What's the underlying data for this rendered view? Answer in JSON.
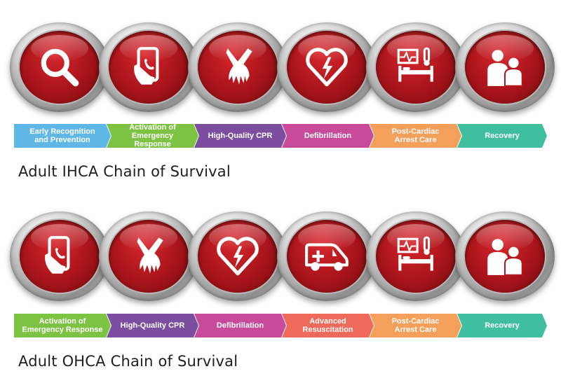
{
  "ihca": {
    "caption": "Adult IHCA Chain of Survival",
    "links": [
      {
        "icon": "magnifier-icon"
      },
      {
        "icon": "phone-in-hand-icon"
      },
      {
        "icon": "cpr-hands-icon"
      },
      {
        "icon": "heart-defibrillation-icon"
      },
      {
        "icon": "hospital-bed-monitor-icon"
      },
      {
        "icon": "family-recovery-icon"
      }
    ],
    "steps": [
      {
        "label": "Early Recognition\nand Prevention",
        "color": "#5fb7e5"
      },
      {
        "label": "Activation of\nEmergency Response",
        "color": "#7dc242"
      },
      {
        "label": "High-Quality CPR",
        "color": "#7b4ea0"
      },
      {
        "label": "Defibrillation",
        "color": "#c94a9b"
      },
      {
        "label": "Post-Cardiac\nArrest Care",
        "color": "#f5a05a"
      },
      {
        "label": "Recovery",
        "color": "#3fbfa0"
      }
    ]
  },
  "ohca": {
    "caption": "Adult OHCA Chain of Survival",
    "links": [
      {
        "icon": "phone-in-hand-icon"
      },
      {
        "icon": "cpr-hands-icon"
      },
      {
        "icon": "heart-defibrillation-icon"
      },
      {
        "icon": "ambulance-icon"
      },
      {
        "icon": "hospital-bed-monitor-icon"
      },
      {
        "icon": "family-recovery-icon"
      }
    ],
    "steps": [
      {
        "label": "Activation of\nEmergency Response",
        "color": "#7dc242"
      },
      {
        "label": "High-Quality CPR",
        "color": "#7b4ea0"
      },
      {
        "label": "Defibrillation",
        "color": "#c94a9b"
      },
      {
        "label": "Advanced\nResuscitation",
        "color": "#ef6a5a"
      },
      {
        "label": "Post-Cardiac\nArrest Care",
        "color": "#f5a05a"
      },
      {
        "label": "Recovery",
        "color": "#3fbfa0"
      }
    ]
  }
}
